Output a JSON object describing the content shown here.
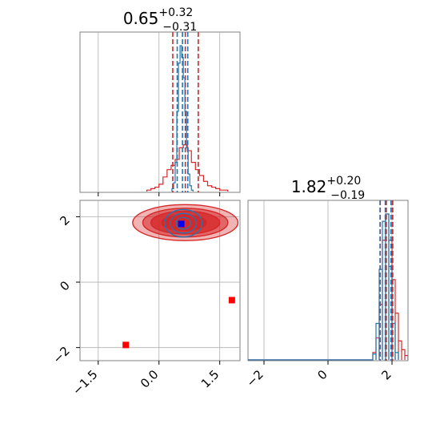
{
  "colors": {
    "red": "#d62728",
    "blue": "#1f77b4",
    "marker_blue": "#0000ff",
    "marker_red": "#ff0000",
    "grid": "#b0b0b0"
  },
  "chart_data": [
    {
      "type": "histogram",
      "panel": "marginal-param-1",
      "title_value": "0.65",
      "title_plus": "+0.32",
      "title_minus": "−0.31",
      "xlim": [
        -1.95,
        2.0
      ],
      "grid": true,
      "series": [
        {
          "color": "red",
          "bin_centers": [
            -0.25,
            -0.15,
            -0.05,
            0.05,
            0.15,
            0.25,
            0.35,
            0.45,
            0.55,
            0.65,
            0.75,
            0.85,
            0.95,
            1.05,
            1.15,
            1.25,
            1.35,
            1.45,
            1.55,
            1.65
          ],
          "heights": [
            0.01,
            0.02,
            0.03,
            0.05,
            0.1,
            0.15,
            0.18,
            0.22,
            0.3,
            0.32,
            0.28,
            0.2,
            0.15,
            0.11,
            0.07,
            0.04,
            0.03,
            0.02,
            0.01,
            0.01
          ]
        },
        {
          "color": "blue",
          "bin_centers": [
            0.34,
            0.38,
            0.42,
            0.46,
            0.5,
            0.54,
            0.58,
            0.62,
            0.66,
            0.7,
            0.74,
            0.78,
            0.82
          ],
          "heights": [
            0.02,
            0.06,
            0.2,
            0.55,
            0.88,
            1.0,
            0.92,
            0.78,
            0.55,
            0.3,
            0.12,
            0.04,
            0.01
          ]
        }
      ],
      "red_quantiles": [
        0.34,
        0.65,
        0.97
      ],
      "blue_quantiles": [
        0.45,
        0.58,
        0.71
      ]
    },
    {
      "type": "histogram",
      "panel": "marginal-param-2",
      "title_value": "1.82",
      "title_plus": "+0.20",
      "title_minus": "−0.19",
      "xlim": [
        -2.5,
        2.5
      ],
      "grid": true,
      "x_tick_labels": [
        "−2",
        "0",
        "2"
      ],
      "x_ticks": [
        -2,
        0,
        2
      ],
      "series": [
        {
          "color": "red",
          "bin_centers": [
            1.45,
            1.55,
            1.65,
            1.75,
            1.85,
            1.95,
            2.05,
            2.15,
            2.25,
            2.35,
            2.45
          ],
          "heights": [
            0.05,
            0.15,
            0.38,
            0.82,
            1.0,
            0.82,
            0.55,
            0.32,
            0.13,
            0.07,
            0.03
          ]
        },
        {
          "color": "blue",
          "bin_centers": [
            1.45,
            1.55,
            1.65,
            1.75,
            1.85,
            1.95,
            2.05,
            2.15
          ],
          "heights": [
            0.04,
            0.25,
            0.62,
            0.95,
            1.0,
            0.64,
            0.25,
            0.05
          ]
        }
      ],
      "red_quantiles": [
        1.63,
        1.82,
        2.02
      ],
      "blue_quantiles": [
        1.63,
        1.79,
        1.97
      ]
    },
    {
      "type": "scatter",
      "panel": "joint",
      "xlim": [
        -1.95,
        2.0
      ],
      "ylim": [
        -2.4,
        2.5
      ],
      "x_ticks": [
        -1.5,
        0.0,
        1.5
      ],
      "x_tick_labels": [
        "−1.5",
        "0.0",
        "1.5"
      ],
      "y_ticks": [
        -2,
        0,
        2
      ],
      "y_tick_labels": [
        "−2",
        "0",
        "2"
      ],
      "grid": true,
      "red_contours": [
        {
          "cx": 0.65,
          "cy": 1.82,
          "rx": 1.3,
          "ry": 0.55
        },
        {
          "cx": 0.65,
          "cy": 1.82,
          "rx": 1.05,
          "ry": 0.44
        },
        {
          "cx": 0.65,
          "cy": 1.82,
          "rx": 0.85,
          "ry": 0.35
        },
        {
          "cx": 0.62,
          "cy": 1.82,
          "rx": 0.55,
          "ry": 0.24
        }
      ],
      "blue_contours": [
        {
          "cx": 0.6,
          "cy": 1.8,
          "rx": 0.46,
          "ry": 0.42
        },
        {
          "cx": 0.6,
          "cy": 1.8,
          "rx": 0.32,
          "ry": 0.3
        },
        {
          "cx": 0.6,
          "cy": 1.8,
          "rx": 0.18,
          "ry": 0.18
        }
      ],
      "blue_point": {
        "x": 0.55,
        "y": 1.78
      },
      "red_points": [
        {
          "x": 1.8,
          "y": -0.55
        },
        {
          "x": -0.82,
          "y": -1.92
        }
      ]
    }
  ]
}
